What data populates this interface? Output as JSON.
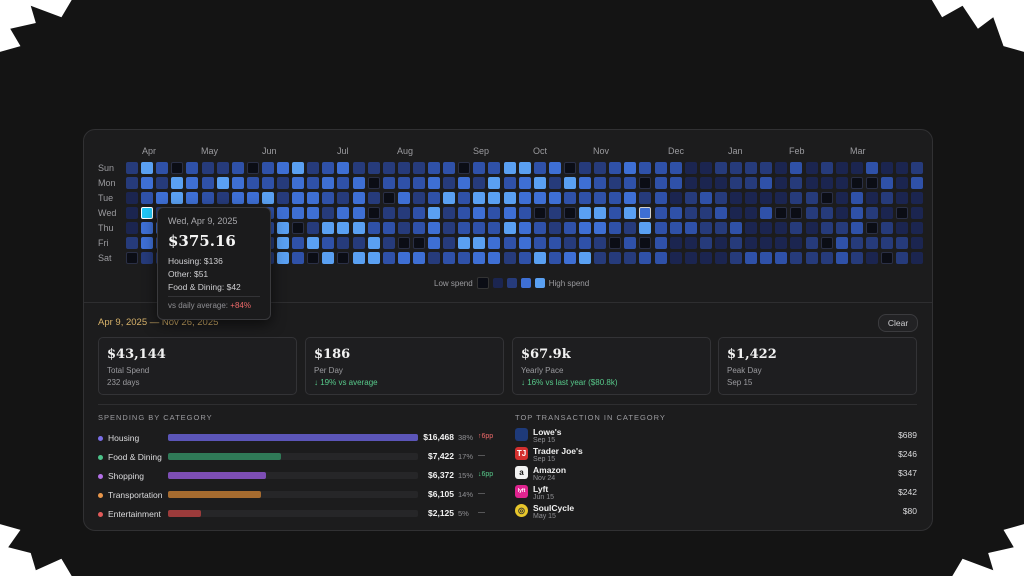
{
  "colors": {
    "levels": [
      "#0b0d15",
      "#1b2550",
      "#263b7b",
      "#2f51a8",
      "#3e6fd4",
      "#5aa0f2"
    ],
    "selected": "#21c6f5",
    "accent_date": "#d6b169",
    "positive": "#57c98a",
    "negative": "#ef6a6a"
  },
  "heatmap": {
    "months": [
      "Apr",
      "May",
      "Jun",
      "Jul",
      "Aug",
      "Sep",
      "Oct",
      "Nov",
      "Dec",
      "Jan",
      "Feb",
      "Mar"
    ],
    "days": [
      "Sun",
      "Mon",
      "Tue",
      "Wed",
      "Thu",
      "Fri",
      "Sat"
    ],
    "legend_low": "Low spend",
    "legend_high": "High spend",
    "selected_cell": "Wed, Apr 9, 2025"
  },
  "tooltip": {
    "date": "Wed, Apr 9, 2025",
    "amount": "$375.16",
    "lines": [
      "Housing: $136",
      "Other: $51",
      "Food & Dining: $42"
    ],
    "vs_label": "vs daily average: ",
    "vs_value": "+84%"
  },
  "range": {
    "label": "Apr 9, 2025 — Nov 26, 2025",
    "clear": "Clear"
  },
  "stats": [
    {
      "value": "$43,144",
      "label": "Total Spend",
      "sub": "232 days",
      "sub_positive": false
    },
    {
      "value": "$186",
      "label": "Per Day",
      "sub": "↓ 19% vs average",
      "sub_positive": true
    },
    {
      "value": "$67.9k",
      "label": "Yearly Pace",
      "sub": "↓ 16% vs last year ($80.8k)",
      "sub_positive": true
    },
    {
      "value": "$1,422",
      "label": "Peak Day",
      "sub": "Sep 15",
      "sub_positive": false
    }
  ],
  "categories_title": "SPENDING BY CATEGORY",
  "categories": [
    {
      "name": "Housing",
      "amount": "$16,468",
      "pct": "38%",
      "change": "↑6pp",
      "dir": "up",
      "color": "#7a6ee8",
      "bar": "#5b55b8",
      "share": 1.0
    },
    {
      "name": "Food & Dining",
      "amount": "$7,422",
      "pct": "17%",
      "change": "—",
      "dir": "flat",
      "color": "#4cc38a",
      "bar": "#2f7a57",
      "share": 0.45
    },
    {
      "name": "Shopping",
      "amount": "$6,372",
      "pct": "15%",
      "change": "↓6pp",
      "dir": "down",
      "color": "#b470e8",
      "bar": "#7d4eb5",
      "share": 0.39
    },
    {
      "name": "Transportation",
      "amount": "$6,105",
      "pct": "14%",
      "change": "—",
      "dir": "flat",
      "color": "#e8964a",
      "bar": "#a66b2f",
      "share": 0.37
    },
    {
      "name": "Entertainment",
      "amount": "$2,125",
      "pct": "5%",
      "change": "—",
      "dir": "flat",
      "color": "#e25a5a",
      "bar": "#9c3b3b",
      "share": 0.13
    }
  ],
  "transactions_title": "TOP TRANSACTION IN CATEGORY",
  "transactions": [
    {
      "name": "Lowe's",
      "date": "Sep 15",
      "amount": "$689",
      "logo": "",
      "logo_bg": "#1e3a7a"
    },
    {
      "name": "Trader Joe's",
      "date": "Sep 15",
      "amount": "$246",
      "logo": "TJ",
      "logo_bg": "#d3302f"
    },
    {
      "name": "Amazon",
      "date": "Nov 24",
      "amount": "$347",
      "logo": "a",
      "logo_bg": "#f2f2f2"
    },
    {
      "name": "Lyft",
      "date": "Jun 15",
      "amount": "$242",
      "logo": "lyft",
      "logo_bg": "#e0238f"
    },
    {
      "name": "SoulCycle",
      "date": "May 15",
      "amount": "$80",
      "logo": "◎",
      "logo_bg": "#e7c62b"
    }
  ]
}
